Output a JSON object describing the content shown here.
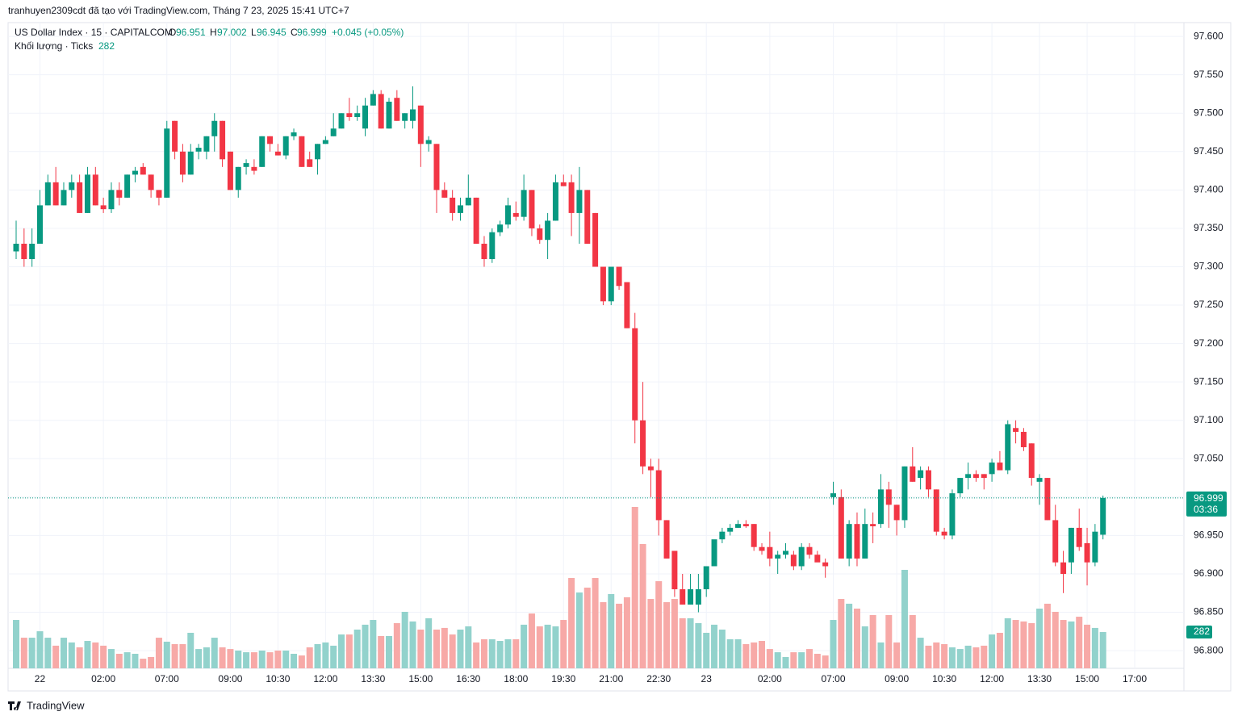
{
  "attribution": "tranhuyen2309cdt đã tạo với TradingView.com, Tháng 7 23, 2025 15:41 UTC+7",
  "brand": "TradingView",
  "chart_data": {
    "type": "candlestick",
    "symbol": "US Dollar Index · 15 · CAPITALCOM",
    "ohlc_labels": {
      "o": "O",
      "h": "H",
      "l": "L",
      "c": "C"
    },
    "change": "+0.045 (+0.05%)",
    "volume_title": "Khối lượng · Ticks",
    "countdown": "03:36",
    "up_color": "#089981",
    "down_color": "#f23645",
    "volume_up_color": "#92d2cc",
    "volume_down_color": "#f7a9a7",
    "grid": true,
    "ylim": [
      96.777,
      97.618
    ],
    "yticks": [
      {
        "value": 96.8,
        "label": "96.800"
      },
      {
        "value": 96.85,
        "label": "96.850"
      },
      {
        "value": 96.9,
        "label": "96.900"
      },
      {
        "value": 96.95,
        "label": "96.950"
      },
      {
        "value": 97.0,
        "label": "97.000"
      },
      {
        "value": 97.05,
        "label": "97.050"
      },
      {
        "value": 97.1,
        "label": "97.100"
      },
      {
        "value": 97.15,
        "label": "97.150"
      },
      {
        "value": 97.2,
        "label": "97.200"
      },
      {
        "value": 97.25,
        "label": "97.250"
      },
      {
        "value": 97.3,
        "label": "97.300"
      },
      {
        "value": 97.35,
        "label": "97.350"
      },
      {
        "value": 97.4,
        "label": "97.400"
      },
      {
        "value": 97.45,
        "label": "97.450"
      },
      {
        "value": 97.5,
        "label": "97.500"
      },
      {
        "value": 97.55,
        "label": "97.550"
      },
      {
        "value": 97.6,
        "label": "97.600"
      }
    ],
    "x_labels": [
      {
        "index": 3,
        "label": "22"
      },
      {
        "index": 11,
        "label": "02:00"
      },
      {
        "index": 19,
        "label": "07:00"
      },
      {
        "index": 27,
        "label": "09:00"
      },
      {
        "index": 33,
        "label": "10:30"
      },
      {
        "index": 39,
        "label": "12:00"
      },
      {
        "index": 45,
        "label": "13:30"
      },
      {
        "index": 51,
        "label": "15:00"
      },
      {
        "index": 57,
        "label": "16:30"
      },
      {
        "index": 63,
        "label": "18:00"
      },
      {
        "index": 69,
        "label": "19:30"
      },
      {
        "index": 75,
        "label": "21:00"
      },
      {
        "index": 81,
        "label": "22:30"
      },
      {
        "index": 87,
        "label": "23"
      },
      {
        "index": 95,
        "label": "02:00"
      },
      {
        "index": 103,
        "label": "07:00"
      },
      {
        "index": 111,
        "label": "09:00"
      },
      {
        "index": 117,
        "label": "10:30"
      },
      {
        "index": 123,
        "label": "12:00"
      },
      {
        "index": 129,
        "label": "13:30"
      },
      {
        "index": 135,
        "label": "15:00"
      },
      {
        "index": 141,
        "label": "17:00"
      }
    ],
    "open": [
      97.32,
      97.33,
      97.31,
      97.33,
      97.38,
      97.41,
      97.38,
      97.4,
      97.41,
      97.37,
      97.42,
      97.38,
      97.375,
      97.4,
      97.39,
      97.42,
      97.43,
      97.42,
      97.4,
      97.39,
      97.49,
      97.45,
      97.42,
      97.45,
      97.45,
      97.47,
      97.49,
      97.45,
      97.4,
      97.43,
      97.43,
      97.43,
      97.47,
      97.45,
      97.445,
      97.47,
      97.47,
      97.44,
      97.44,
      97.46,
      97.47,
      97.48,
      97.5,
      97.495,
      97.48,
      97.51,
      97.525,
      97.48,
      97.52,
      97.49,
      97.49,
      97.51,
      97.46,
      97.46,
      97.4,
      97.39,
      97.37,
      97.38,
      97.39,
      97.33,
      97.31,
      97.345,
      97.355,
      97.37,
      97.365,
      97.4,
      97.35,
      97.335,
      97.36,
      97.41,
      97.41,
      97.37,
      97.4,
      97.37,
      97.3,
      97.255,
      97.3,
      97.28,
      97.22,
      97.1,
      97.04,
      97.035,
      96.97,
      96.93,
      96.88,
      96.86,
      96.86,
      96.88,
      96.91,
      96.945,
      96.955,
      96.96,
      96.965,
      96.965,
      96.935,
      96.935,
      96.92,
      96.925,
      96.925,
      96.91,
      96.935,
      96.925,
      96.915,
      97.0,
      97.0,
      96.92,
      96.965,
      96.92,
      96.965,
      96.965,
      97.01,
      96.99,
      96.97,
      97.04,
      97.025,
      97.035,
      97.01,
      96.955,
      96.95,
      97.005,
      97.025,
      97.03,
      97.03,
      97.03,
      97.045,
      97.035,
      97.09,
      97.085,
      97.07,
      97.02,
      97.025,
      96.97,
      96.915,
      96.915,
      96.96,
      96.94,
      96.915,
      96.951
    ],
    "high": [
      97.36,
      97.35,
      97.35,
      97.4,
      97.42,
      97.43,
      97.41,
      97.42,
      97.42,
      97.43,
      97.43,
      97.39,
      97.41,
      97.41,
      97.42,
      97.43,
      97.435,
      97.42,
      97.4,
      97.49,
      97.49,
      97.46,
      97.46,
      97.46,
      97.47,
      97.5,
      97.49,
      97.45,
      97.43,
      97.44,
      97.44,
      97.47,
      97.47,
      97.46,
      97.47,
      97.48,
      97.47,
      97.45,
      97.46,
      97.47,
      97.5,
      97.5,
      97.52,
      97.51,
      97.52,
      97.53,
      97.53,
      97.52,
      97.53,
      97.5,
      97.535,
      97.51,
      97.47,
      97.46,
      97.41,
      97.4,
      97.39,
      97.42,
      97.39,
      97.34,
      97.35,
      97.36,
      97.39,
      97.385,
      97.42,
      97.4,
      97.355,
      97.37,
      97.42,
      97.42,
      97.42,
      97.43,
      97.4,
      97.37,
      97.3,
      97.3,
      97.3,
      97.28,
      97.24,
      97.15,
      97.05,
      97.05,
      96.97,
      96.93,
      96.9,
      96.9,
      96.9,
      96.91,
      96.94,
      96.96,
      96.965,
      96.97,
      96.97,
      96.965,
      96.94,
      96.955,
      96.93,
      96.94,
      96.93,
      96.94,
      96.94,
      96.93,
      96.92,
      97.02,
      97.01,
      96.97,
      96.98,
      96.985,
      96.98,
      97.03,
      97.02,
      96.99,
      97.04,
      97.065,
      97.04,
      97.04,
      97.01,
      96.96,
      97.01,
      97.025,
      97.045,
      97.035,
      97.03,
      97.05,
      97.06,
      97.1,
      97.1,
      97.09,
      97.07,
      97.03,
      97.025,
      96.99,
      96.93,
      96.96,
      96.985,
      96.96,
      96.965,
      97.002
    ],
    "low": [
      97.31,
      97.3,
      97.3,
      97.33,
      97.38,
      97.38,
      97.38,
      97.39,
      97.37,
      97.37,
      97.38,
      97.37,
      97.37,
      97.38,
      97.39,
      97.41,
      97.42,
      97.39,
      97.38,
      97.39,
      97.44,
      97.41,
      97.42,
      97.44,
      97.44,
      97.45,
      97.43,
      97.4,
      97.39,
      97.42,
      97.42,
      97.43,
      97.45,
      97.445,
      97.44,
      97.465,
      97.43,
      97.43,
      97.42,
      97.46,
      97.47,
      97.48,
      97.49,
      97.49,
      97.47,
      97.51,
      97.48,
      97.48,
      97.49,
      97.48,
      97.48,
      97.43,
      97.45,
      97.37,
      97.39,
      97.36,
      97.36,
      97.38,
      97.33,
      97.3,
      97.305,
      97.34,
      97.35,
      97.36,
      97.36,
      97.34,
      97.33,
      97.31,
      97.36,
      97.405,
      97.34,
      97.33,
      97.33,
      97.3,
      97.25,
      97.25,
      97.27,
      97.22,
      97.07,
      97.03,
      97.0,
      96.95,
      96.92,
      96.87,
      96.86,
      96.86,
      96.85,
      96.87,
      96.91,
      96.94,
      96.95,
      96.96,
      96.96,
      96.93,
      96.925,
      96.91,
      96.9,
      96.92,
      96.905,
      96.905,
      96.92,
      96.92,
      96.895,
      96.99,
      96.92,
      96.91,
      96.91,
      96.92,
      96.94,
      96.96,
      96.96,
      96.95,
      96.96,
      97.02,
      97.01,
      97.0,
      96.95,
      96.945,
      96.945,
      97.0,
      97.01,
      97.02,
      97.01,
      97.02,
      97.035,
      97.03,
      97.07,
      97.06,
      97.015,
      96.99,
      96.97,
      96.91,
      96.875,
      96.9,
      96.93,
      96.885,
      96.91,
      96.945
    ],
    "close": [
      97.33,
      97.31,
      97.33,
      97.38,
      97.41,
      97.38,
      97.4,
      97.41,
      97.37,
      97.42,
      97.38,
      97.375,
      97.4,
      97.39,
      97.42,
      97.425,
      97.42,
      97.4,
      97.39,
      97.48,
      97.45,
      97.42,
      97.45,
      97.455,
      97.47,
      97.49,
      97.44,
      97.4,
      97.43,
      97.435,
      97.425,
      97.47,
      97.46,
      97.445,
      97.47,
      97.475,
      97.43,
      97.43,
      97.46,
      97.465,
      97.48,
      97.5,
      97.495,
      97.5,
      97.51,
      97.525,
      97.48,
      97.515,
      97.49,
      97.5,
      97.505,
      97.46,
      97.465,
      97.4,
      97.39,
      97.37,
      97.38,
      97.39,
      97.33,
      97.31,
      97.345,
      97.355,
      97.38,
      97.365,
      97.4,
      97.35,
      97.335,
      97.36,
      97.41,
      97.405,
      97.37,
      97.4,
      97.33,
      97.3,
      97.255,
      97.3,
      97.275,
      97.22,
      97.1,
      97.04,
      97.035,
      96.97,
      96.92,
      96.88,
      96.86,
      96.88,
      96.88,
      96.91,
      96.945,
      96.955,
      96.96,
      96.965,
      96.962,
      96.935,
      96.93,
      96.92,
      96.925,
      96.93,
      96.91,
      96.935,
      96.925,
      96.915,
      96.91,
      97.005,
      96.92,
      96.965,
      96.92,
      96.965,
      96.962,
      97.01,
      96.99,
      96.97,
      97.04,
      97.02,
      97.035,
      97.01,
      96.955,
      96.95,
      97.005,
      97.025,
      97.03,
      97.025,
      97.025,
      97.045,
      97.035,
      97.095,
      97.085,
      97.065,
      97.025,
      97.025,
      96.97,
      96.915,
      96.9,
      96.96,
      96.935,
      96.915,
      96.955,
      96.999
    ],
    "volume": [
      376,
      238,
      238,
      288,
      238,
      176,
      238,
      201,
      163,
      213,
      201,
      176,
      150,
      113,
      125,
      113,
      75,
      88,
      238,
      207,
      188,
      188,
      276,
      150,
      163,
      238,
      163,
      150,
      138,
      125,
      125,
      138,
      125,
      138,
      138,
      113,
      100,
      163,
      188,
      201,
      176,
      263,
      263,
      301,
      339,
      376,
      251,
      251,
      351,
      439,
      364,
      301,
      389,
      301,
      314,
      263,
      301,
      326,
      201,
      226,
      226,
      213,
      226,
      226,
      339,
      426,
      326,
      339,
      326,
      376,
      702,
      589,
      627,
      702,
      514,
      577,
      502,
      552,
      1254,
      966,
      539,
      677,
      514,
      539,
      389,
      389,
      351,
      276,
      339,
      301,
      226,
      226,
      188,
      201,
      213,
      150,
      125,
      88,
      125,
      125,
      150,
      113,
      100,
      376,
      539,
      502,
      464,
      326,
      414,
      201,
      414,
      201,
      765,
      414,
      238,
      176,
      201,
      188,
      163,
      150,
      176,
      163,
      176,
      263,
      276,
      389,
      376,
      364,
      351,
      464,
      502,
      439,
      376,
      364,
      401,
      339,
      314,
      282
    ]
  }
}
